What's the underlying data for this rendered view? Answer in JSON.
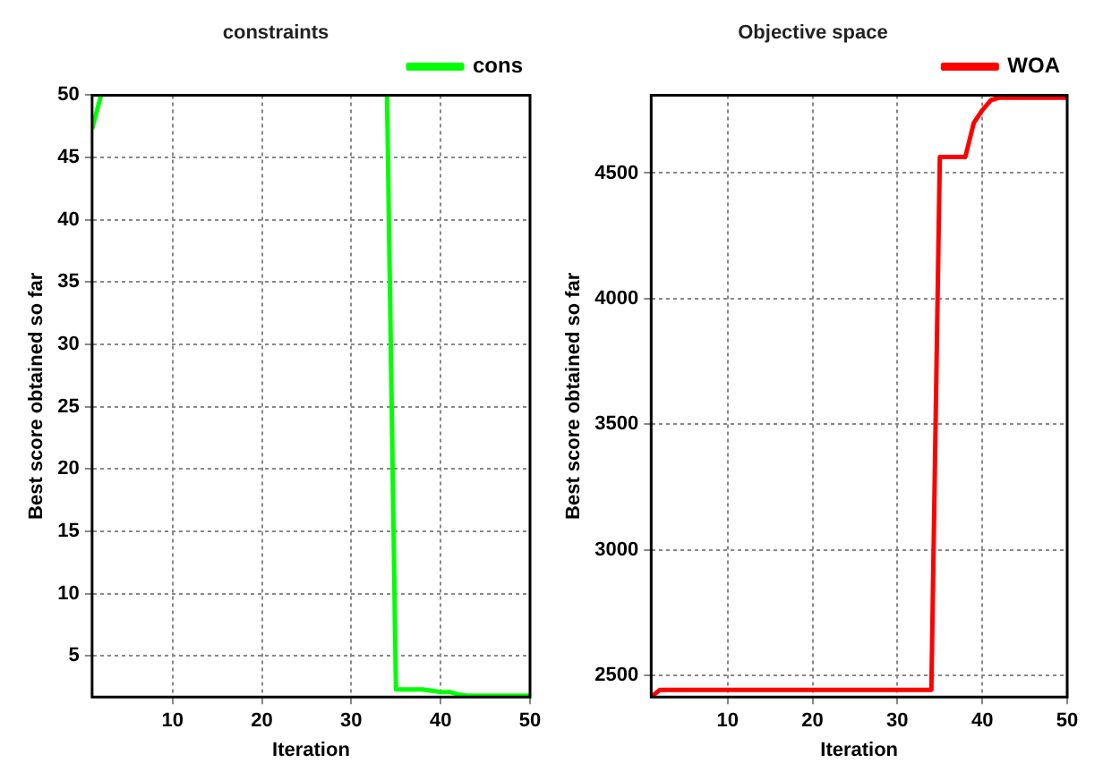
{
  "chart_data": [
    {
      "type": "line",
      "title": "constraints",
      "xlabel": "Iteration",
      "ylabel": "Best score obtained so far",
      "x": [
        1,
        2,
        3,
        4,
        5,
        6,
        7,
        8,
        9,
        10,
        11,
        12,
        13,
        14,
        15,
        16,
        17,
        18,
        19,
        20,
        21,
        22,
        23,
        24,
        25,
        26,
        27,
        28,
        29,
        30,
        31,
        32,
        33,
        34,
        35,
        36,
        37,
        38,
        39,
        40,
        41,
        42,
        43,
        44,
        45,
        46,
        47,
        48,
        49,
        50
      ],
      "xlim": [
        1,
        50
      ],
      "xticks": [
        10,
        20,
        30,
        40,
        50
      ],
      "ylim": [
        1.7,
        50
      ],
      "yticks": [
        5,
        10,
        15,
        20,
        25,
        30,
        35,
        40,
        45,
        50
      ],
      "grid": true,
      "legend": "top right",
      "line_style": "solid",
      "series": [
        {
          "name": "cons",
          "color": "#00ff00",
          "values": [
            47.3,
            50,
            null,
            null,
            null,
            null,
            null,
            null,
            null,
            null,
            null,
            null,
            null,
            null,
            null,
            null,
            null,
            null,
            null,
            null,
            null,
            null,
            null,
            null,
            null,
            null,
            null,
            null,
            null,
            null,
            null,
            null,
            null,
            50,
            2.3,
            2.3,
            2.3,
            2.3,
            2.2,
            2.1,
            2.1,
            1.9,
            1.8,
            1.8,
            1.8,
            1.8,
            1.8,
            1.8,
            1.8,
            1.8
          ]
        }
      ]
    },
    {
      "type": "line",
      "title": "Objective space",
      "xlabel": "Iteration",
      "ylabel": "Best score obtained so far",
      "x": [
        1,
        2,
        3,
        4,
        5,
        6,
        7,
        8,
        9,
        10,
        11,
        12,
        13,
        14,
        15,
        16,
        17,
        18,
        19,
        20,
        21,
        22,
        23,
        24,
        25,
        26,
        27,
        28,
        29,
        30,
        31,
        32,
        33,
        34,
        35,
        36,
        37,
        38,
        39,
        40,
        41,
        42,
        43,
        44,
        45,
        46,
        47,
        48,
        49,
        50
      ],
      "xlim": [
        1,
        50
      ],
      "xticks": [
        10,
        20,
        30,
        40,
        50
      ],
      "ylim": [
        2415,
        4810
      ],
      "yticks": [
        2500,
        3000,
        3500,
        4000,
        4500
      ],
      "grid": true,
      "legend": "top right",
      "line_style": "solid",
      "series": [
        {
          "name": "WOA",
          "color": "#ff0000",
          "values": [
            2415,
            2443,
            2443,
            2443,
            2443,
            2443,
            2443,
            2443,
            2443,
            2443,
            2443,
            2443,
            2443,
            2443,
            2443,
            2443,
            2443,
            2443,
            2443,
            2443,
            2443,
            2443,
            2443,
            2443,
            2443,
            2443,
            2443,
            2443,
            2443,
            2443,
            2443,
            2443,
            2443,
            2443,
            4564,
            4564,
            4564,
            4564,
            4700,
            4750,
            4790,
            4800,
            4800,
            4800,
            4800,
            4800,
            4800,
            4800,
            4800,
            4800
          ]
        }
      ]
    }
  ]
}
